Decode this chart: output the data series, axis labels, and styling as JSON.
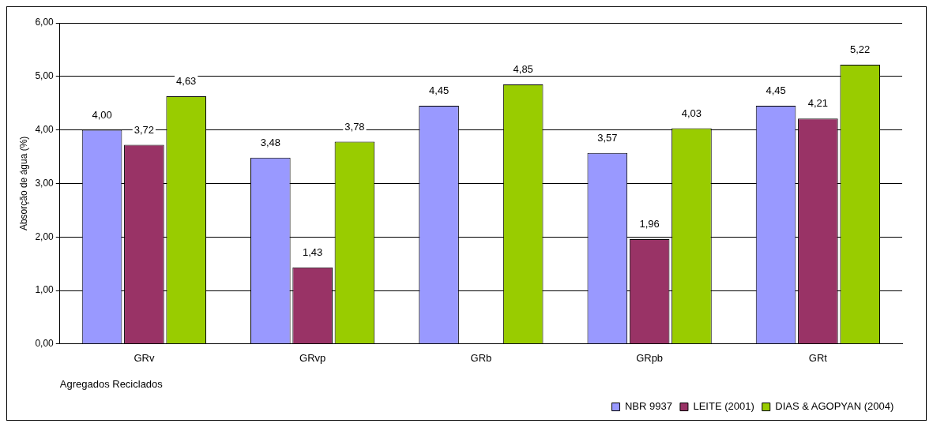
{
  "chart_data": {
    "type": "bar",
    "xlabel": "Agregados Reciclados",
    "ylabel": "Absorção de água (%)",
    "categories": [
      "GRv",
      "GRvp",
      "GRb",
      "GRpb",
      "GRt"
    ],
    "series": [
      {
        "name": "NBR 9937",
        "color": "#9999ff",
        "values": [
          4.0,
          3.48,
          4.45,
          3.57,
          4.45
        ],
        "value_labels": [
          "4,00",
          "3,48",
          "4,45",
          "3,57",
          "4,45"
        ]
      },
      {
        "name": "LEITE (2001)",
        "color": "#993366",
        "values": [
          3.72,
          1.43,
          null,
          1.96,
          4.21
        ],
        "value_labels": [
          "3,72",
          "1,43",
          null,
          "1,96",
          "4,21"
        ]
      },
      {
        "name": "DIAS & AGOPYAN (2004)",
        "color": "#99cc00",
        "values": [
          4.63,
          3.78,
          4.85,
          4.03,
          5.22
        ],
        "value_labels": [
          "4,63",
          "3,78",
          "4,85",
          "4,03",
          "5,22"
        ]
      }
    ],
    "ylim": [
      0,
      6
    ],
    "yticks": [
      {
        "value": 0,
        "label": "0,00"
      },
      {
        "value": 1,
        "label": "1,00"
      },
      {
        "value": 2,
        "label": "2,00"
      },
      {
        "value": 3,
        "label": "3,00"
      },
      {
        "value": 4,
        "label": "4,00"
      },
      {
        "value": 5,
        "label": "5,00"
      },
      {
        "value": 6,
        "label": "6,00"
      }
    ],
    "grid": "y",
    "legend": "bottom right"
  }
}
